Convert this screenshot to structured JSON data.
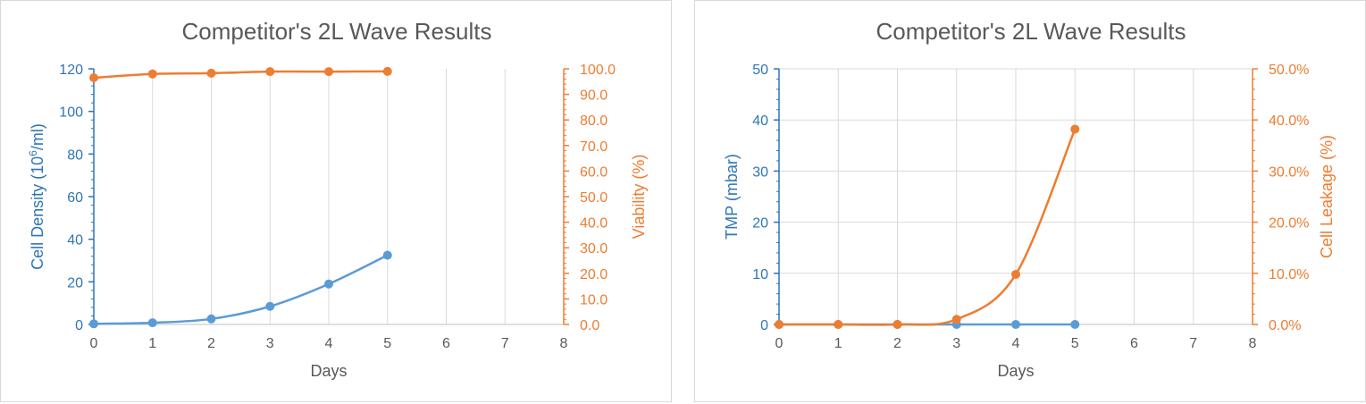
{
  "colors": {
    "series_1": "#5b9bd5",
    "series_2": "#ed7d31",
    "axis_left": "#2e75b6",
    "axis_right": "#ed7d31",
    "gridlines": "#d9d9d9",
    "text": "#595959"
  },
  "chart_data": [
    {
      "type": "line",
      "title": "Competitor's 2L Wave Results",
      "xlabel": "Days",
      "ylabel": "Cell Density (10^6/ml)",
      "ylabel_parts": {
        "pre": "Cell Density (10",
        "sup": "6",
        "post": "/ml)"
      },
      "y2label": "Viability (%)",
      "x": [
        0,
        1,
        2,
        3,
        4,
        5
      ],
      "xlim": [
        0,
        8
      ],
      "x_ticks": [
        "0",
        "1",
        "2",
        "3",
        "4",
        "5",
        "6",
        "7",
        "8"
      ],
      "ylim": [
        0,
        120
      ],
      "y_ticks": [
        "0",
        "20",
        "40",
        "60",
        "80",
        "100",
        "120"
      ],
      "y2lim": [
        0,
        100
      ],
      "y2_ticks": [
        "0.0",
        "10.0",
        "20.0",
        "30.0",
        "40.0",
        "50.0",
        "60.0",
        "70.0",
        "80.0",
        "90.0",
        "100.0"
      ],
      "grid": "vertical",
      "series": [
        {
          "axis": "left",
          "values": [
            0.3,
            0.8,
            2.6,
            8.5,
            19.0,
            32.5
          ]
        },
        {
          "axis": "right",
          "values": [
            96.5,
            98.0,
            98.3,
            98.9,
            98.9,
            99.0
          ]
        }
      ]
    },
    {
      "type": "line",
      "title": "Competitor's 2L Wave Results",
      "xlabel": "Days",
      "ylabel": "TMP  (mbar)",
      "y2label": "Cell Leakage (%)",
      "x": [
        0,
        1,
        2,
        3,
        4,
        5
      ],
      "xlim": [
        0,
        8
      ],
      "x_ticks": [
        "0",
        "1",
        "2",
        "3",
        "4",
        "5",
        "6",
        "7",
        "8"
      ],
      "ylim": [
        0,
        50
      ],
      "y_ticks": [
        "0",
        "10",
        "20",
        "30",
        "40",
        "50"
      ],
      "y2lim": [
        0,
        50
      ],
      "y2_ticks": [
        "0.0%",
        "10.0%",
        "20.0%",
        "30.0%",
        "40.0%",
        "50.0%"
      ],
      "grid": "both",
      "series": [
        {
          "axis": "left",
          "values": [
            0,
            0,
            0,
            0,
            0,
            0
          ]
        },
        {
          "axis": "right",
          "values": [
            0,
            0,
            0,
            1.0,
            9.8,
            38.2
          ]
        }
      ]
    }
  ]
}
